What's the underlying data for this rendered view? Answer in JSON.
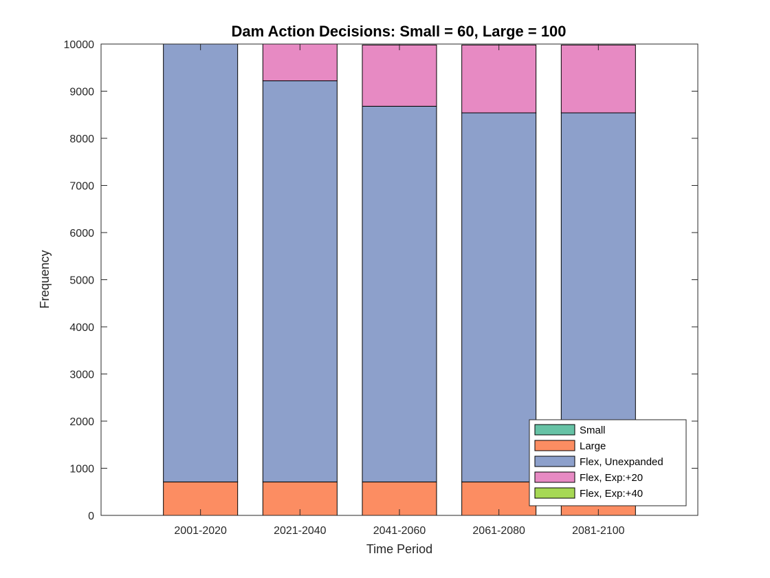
{
  "chart_data": {
    "type": "bar",
    "stacked": true,
    "title": "Dam Action Decisions: Small = 60, Large = 100",
    "xlabel": "Time Period",
    "ylabel": "Frequency",
    "ylim": [
      0,
      10000
    ],
    "yticks": [
      0,
      1000,
      2000,
      3000,
      4000,
      5000,
      6000,
      7000,
      8000,
      9000,
      10000
    ],
    "categories": [
      "2001-2020",
      "2021-2040",
      "2041-2060",
      "2061-2080",
      "2081-2100"
    ],
    "series": [
      {
        "name": "Small",
        "color": "#66c2a5",
        "values": [
          0,
          0,
          0,
          0,
          0
        ]
      },
      {
        "name": "Large",
        "color": "#fc8d62",
        "values": [
          710,
          710,
          710,
          710,
          710
        ]
      },
      {
        "name": "Flex, Unexpanded",
        "color": "#8da0cb",
        "values": [
          9290,
          8510,
          7970,
          7830,
          7830
        ]
      },
      {
        "name": "Flex, Exp:+20",
        "color": "#e78ac3",
        "values": [
          0,
          780,
          1300,
          1440,
          1440
        ]
      },
      {
        "name": "Flex, Exp:+40",
        "color": "#a6d854",
        "values": [
          0,
          0,
          0,
          0,
          0
        ]
      }
    ],
    "grid": false,
    "legend_position": "bottom-right"
  }
}
